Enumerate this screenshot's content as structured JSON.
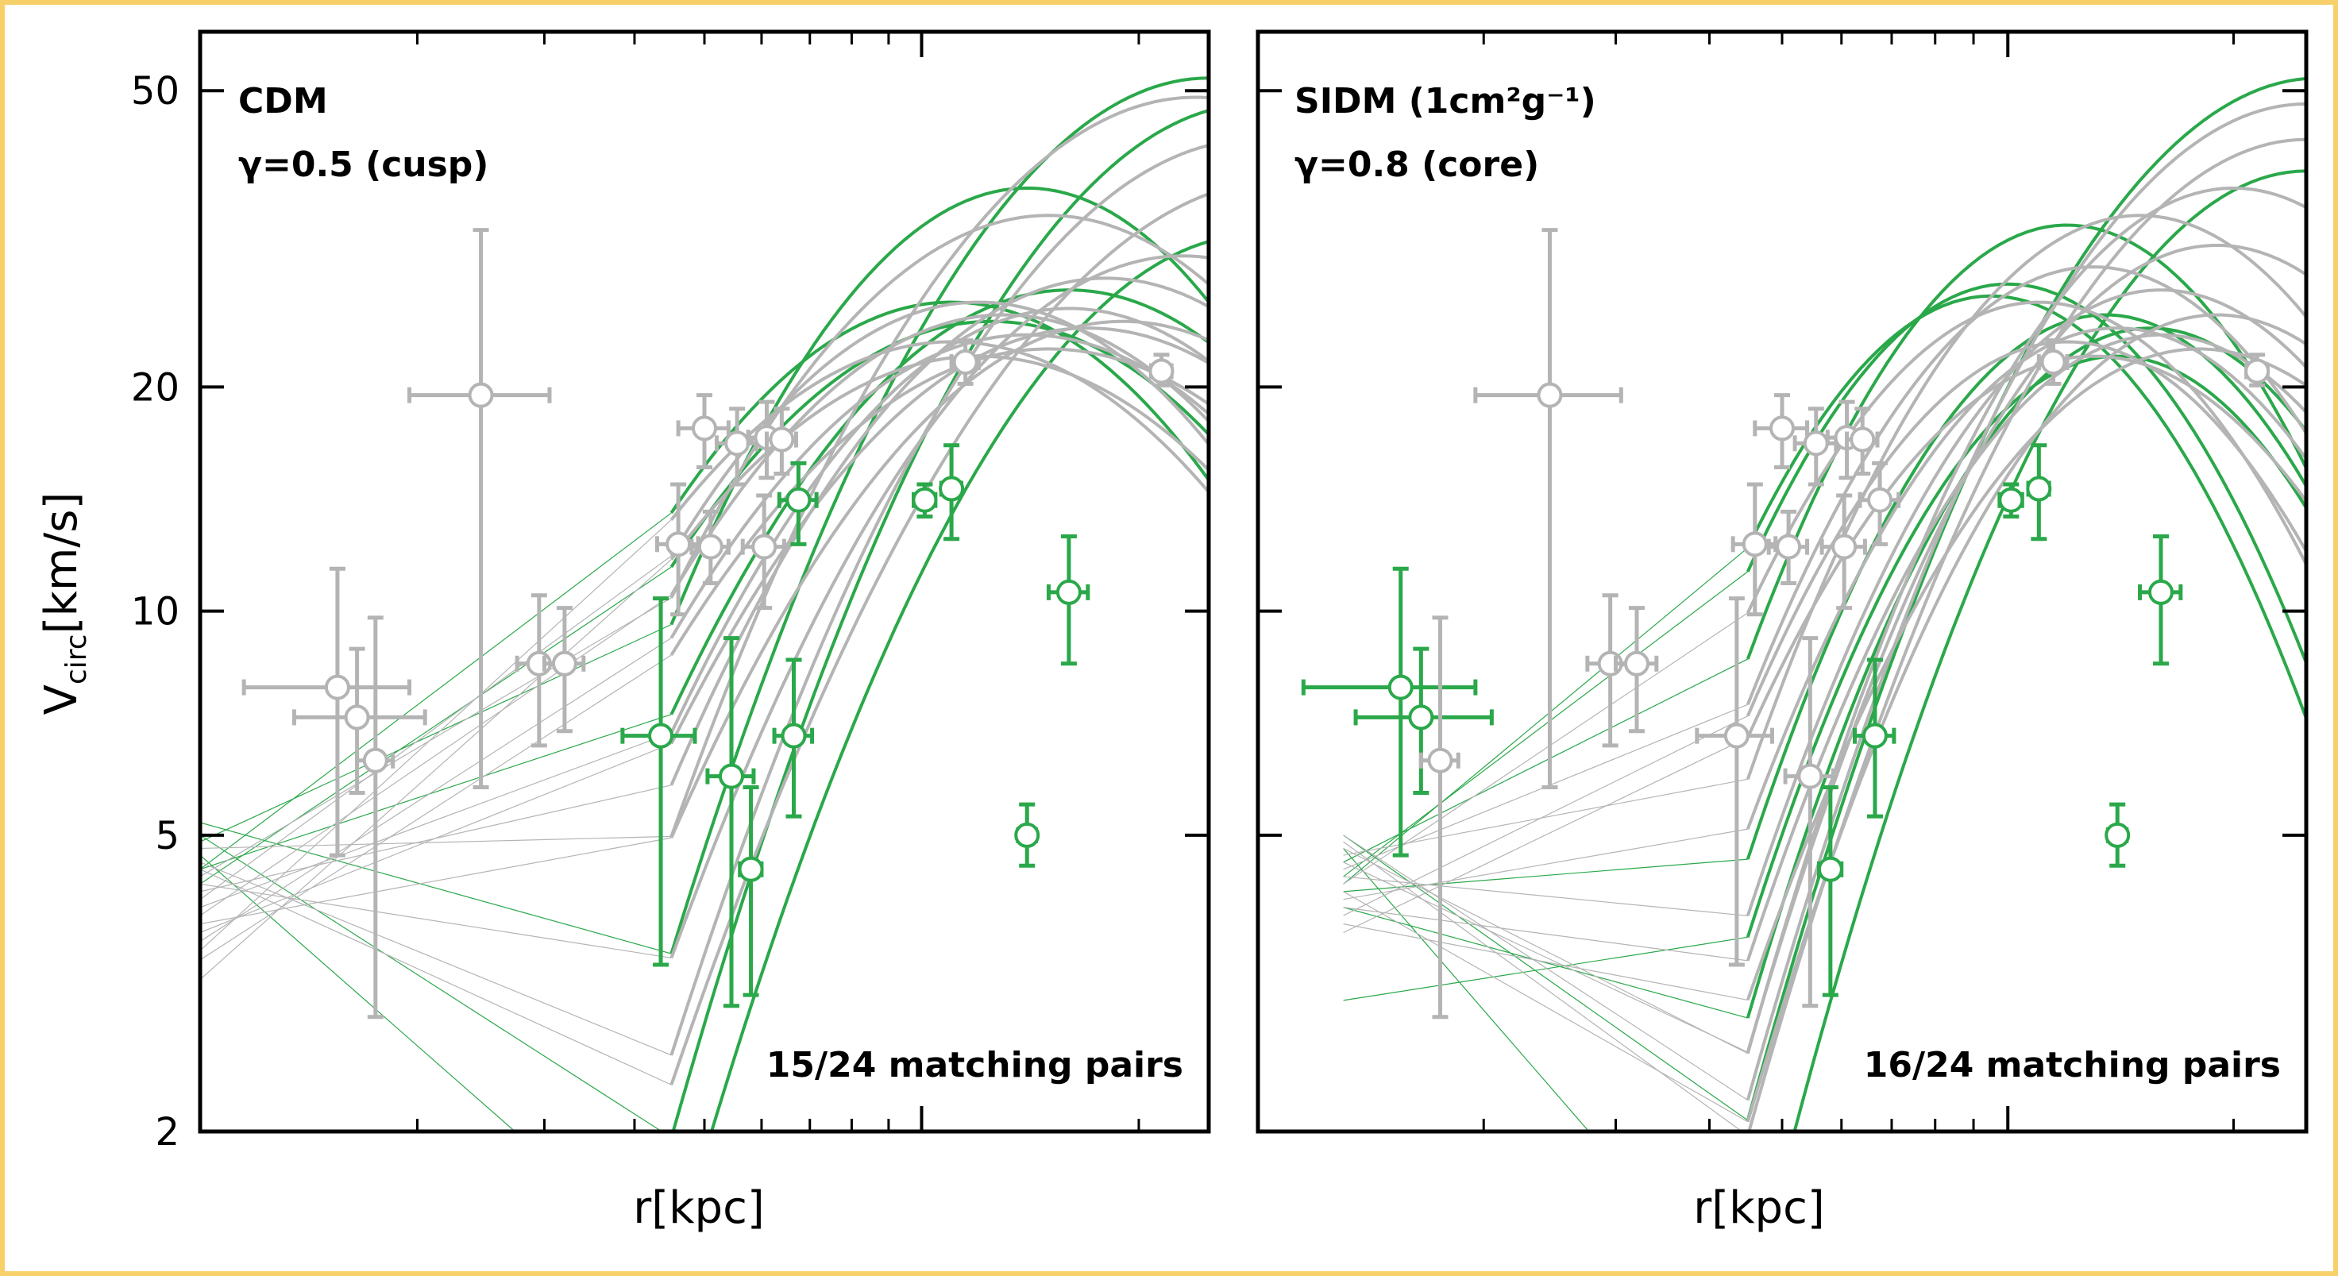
{
  "colors": {
    "frame": "#f8d06a",
    "gray": "#b4b4b4",
    "green": "#2aa84a",
    "axis": "#000000"
  },
  "ylabel_main": "V",
  "ylabel_sub": "circ",
  "ylabel_unit": "[km/s]",
  "chart_data": [
    {
      "type": "line+scatter",
      "title": "CDM",
      "subtitle": "γ=0.5 (cusp)",
      "annotation": "15/24 matching pairs",
      "xlabel": "r[kpc]",
      "xlim": [
        0.1,
        2.5
      ],
      "xscale": "log",
      "ylabel": "V_circ[km/s]",
      "ylim": [
        2,
        60
      ],
      "yscale": "log",
      "yticks": [
        2,
        5,
        10,
        20,
        50
      ],
      "xticks_major": [
        1
      ],
      "xticks_minor": [
        0.2,
        0.3,
        0.4,
        0.5,
        0.6,
        0.7,
        0.8,
        0.9,
        2
      ],
      "curve_start": 0.1,
      "curve_join": 0.45,
      "curves": [
        {
          "color": "green",
          "lowA": 5.2,
          "A": 52,
          "rmax": 2.5,
          "s": 0.32
        },
        {
          "color": "green",
          "lowA": 5.0,
          "A": 48,
          "rmax": 2.9,
          "s": 0.32
        },
        {
          "color": "green",
          "lowA": 4.9,
          "A": 37,
          "rmax": 1.4,
          "s": 0.3
        },
        {
          "color": "green",
          "lowA": 4.7,
          "A": 32,
          "rmax": 2.9,
          "s": 0.32
        },
        {
          "color": "green",
          "lowA": 4.5,
          "A": 27,
          "rmax": 1.6,
          "s": 0.34
        },
        {
          "color": "green",
          "lowA": 4.5,
          "A": 26,
          "rmax": 1.1,
          "s": 0.34
        },
        {
          "color": "green",
          "lowA": 4.3,
          "A": 24.5,
          "rmax": 1.25,
          "s": 0.36
        },
        {
          "color": "gray",
          "lowA": 4.8,
          "A": 49,
          "rmax": 2.4,
          "s": 0.34
        },
        {
          "color": "gray",
          "lowA": 4.6,
          "A": 43,
          "rmax": 2.9,
          "s": 0.34
        },
        {
          "color": "gray",
          "lowA": 4.5,
          "A": 38,
          "rmax": 3.2,
          "s": 0.36
        },
        {
          "color": "gray",
          "lowA": 4.4,
          "A": 34,
          "rmax": 1.5,
          "s": 0.34
        },
        {
          "color": "gray",
          "lowA": 4.3,
          "A": 30,
          "rmax": 2.3,
          "s": 0.34
        },
        {
          "color": "gray",
          "lowA": 4.2,
          "A": 28,
          "rmax": 1.8,
          "s": 0.34
        },
        {
          "color": "gray",
          "lowA": 4.1,
          "A": 26,
          "rmax": 1.2,
          "s": 0.34
        },
        {
          "color": "gray",
          "lowA": 4.0,
          "A": 25.5,
          "rmax": 1.6,
          "s": 0.34
        },
        {
          "color": "gray",
          "lowA": 3.9,
          "A": 25,
          "rmax": 1.3,
          "s": 0.35
        },
        {
          "color": "gray",
          "lowA": 3.8,
          "A": 24.5,
          "rmax": 1.9,
          "s": 0.35
        },
        {
          "color": "gray",
          "lowA": 3.7,
          "A": 24,
          "rmax": 1.7,
          "s": 0.36
        },
        {
          "color": "gray",
          "lowA": 3.6,
          "A": 23.5,
          "rmax": 1.4,
          "s": 0.36
        },
        {
          "color": "gray",
          "lowA": 3.5,
          "A": 23,
          "rmax": 1.1,
          "s": 0.37
        },
        {
          "color": "gray",
          "lowA": 3.4,
          "A": 22.5,
          "rmax": 1.5,
          "s": 0.38
        },
        {
          "color": "gray",
          "lowA": 3.2,
          "A": 22,
          "rmax": 1.2,
          "s": 0.38
        }
      ],
      "points": [
        {
          "r": 0.155,
          "v": 7.9,
          "xlo": 0.115,
          "xhi": 0.195,
          "ylo": 4.7,
          "yhi": 11.4,
          "color": "gray"
        },
        {
          "r": 0.165,
          "v": 7.2,
          "xlo": 0.135,
          "xhi": 0.205,
          "ylo": 5.7,
          "yhi": 8.9,
          "color": "gray"
        },
        {
          "r": 0.175,
          "v": 6.3,
          "xlo": 0.165,
          "xhi": 0.185,
          "ylo": 2.85,
          "yhi": 9.8,
          "color": "gray"
        },
        {
          "r": 0.245,
          "v": 19.5,
          "xlo": 0.195,
          "xhi": 0.305,
          "ylo": 5.8,
          "yhi": 32.5,
          "color": "gray"
        },
        {
          "r": 0.295,
          "v": 8.5,
          "xlo": 0.275,
          "xhi": 0.315,
          "ylo": 6.6,
          "yhi": 10.5,
          "color": "gray"
        },
        {
          "r": 0.32,
          "v": 8.5,
          "xlo": 0.3,
          "xhi": 0.34,
          "ylo": 6.9,
          "yhi": 10.1,
          "color": "gray"
        },
        {
          "r": 0.435,
          "v": 6.8,
          "xlo": 0.385,
          "xhi": 0.485,
          "ylo": 3.35,
          "yhi": 10.4,
          "color": "green"
        },
        {
          "r": 0.46,
          "v": 12.3,
          "xlo": 0.43,
          "xhi": 0.49,
          "ylo": 9.9,
          "yhi": 14.8,
          "color": "gray"
        },
        {
          "r": 0.5,
          "v": 17.6,
          "xlo": 0.46,
          "xhi": 0.54,
          "ylo": 15.6,
          "yhi": 19.5,
          "color": "gray"
        },
        {
          "r": 0.51,
          "v": 12.2,
          "xlo": 0.48,
          "xhi": 0.54,
          "ylo": 10.9,
          "yhi": 13.6,
          "color": "gray"
        },
        {
          "r": 0.545,
          "v": 6.0,
          "xlo": 0.505,
          "xhi": 0.585,
          "ylo": 2.95,
          "yhi": 9.2,
          "color": "green"
        },
        {
          "r": 0.555,
          "v": 16.8,
          "xlo": 0.52,
          "xhi": 0.59,
          "ylo": 14.8,
          "yhi": 18.7,
          "color": "gray"
        },
        {
          "r": 0.58,
          "v": 4.5,
          "xlo": 0.56,
          "xhi": 0.6,
          "ylo": 3.05,
          "yhi": 5.8,
          "color": "green"
        },
        {
          "r": 0.605,
          "v": 12.2,
          "xlo": 0.565,
          "xhi": 0.645,
          "ylo": 10.1,
          "yhi": 14.3,
          "color": "gray"
        },
        {
          "r": 0.61,
          "v": 17.1,
          "xlo": 0.575,
          "xhi": 0.645,
          "ylo": 15.1,
          "yhi": 19.1,
          "color": "gray"
        },
        {
          "r": 0.64,
          "v": 17.0,
          "xlo": 0.61,
          "xhi": 0.67,
          "ylo": 15.3,
          "yhi": 18.7,
          "color": "gray"
        },
        {
          "r": 0.665,
          "v": 6.8,
          "xlo": 0.625,
          "xhi": 0.705,
          "ylo": 5.3,
          "yhi": 8.6,
          "color": "green"
        },
        {
          "r": 0.675,
          "v": 14.1,
          "xlo": 0.635,
          "xhi": 0.715,
          "ylo": 12.3,
          "yhi": 15.8,
          "color": "green"
        },
        {
          "r": 1.01,
          "v": 14.1,
          "xlo": 0.975,
          "xhi": 1.045,
          "ylo": 13.4,
          "yhi": 14.8,
          "color": "green"
        },
        {
          "r": 1.1,
          "v": 14.6,
          "xlo": 1.065,
          "xhi": 1.135,
          "ylo": 12.5,
          "yhi": 16.7,
          "color": "green"
        },
        {
          "r": 1.15,
          "v": 21.6,
          "xlo": 1.1,
          "xhi": 1.2,
          "ylo": 20.2,
          "yhi": 23.1,
          "color": "gray"
        },
        {
          "r": 1.4,
          "v": 5.0,
          "xlo": 1.36,
          "xhi": 1.44,
          "ylo": 4.55,
          "yhi": 5.5,
          "color": "green"
        },
        {
          "r": 1.6,
          "v": 10.6,
          "xlo": 1.5,
          "xhi": 1.7,
          "ylo": 8.5,
          "yhi": 12.6,
          "color": "green"
        },
        {
          "r": 2.15,
          "v": 21.0,
          "xlo": 2.08,
          "xhi": 2.22,
          "ylo": 20.1,
          "yhi": 22.1,
          "color": "gray"
        }
      ]
    },
    {
      "type": "line+scatter",
      "title": "SIDM (1cm²g⁻¹)",
      "subtitle": "γ=0.8 (core)",
      "annotation": "16/24 matching pairs",
      "xlabel": "r[kpc]",
      "xlim": [
        0.1,
        2.5
      ],
      "xscale": "log",
      "ylabel": "V_circ[km/s]",
      "ylim": [
        2,
        60
      ],
      "yscale": "log",
      "yticks": [
        2,
        5,
        10,
        20,
        50
      ],
      "xticks_major": [
        1
      ],
      "xticks_minor": [
        0.2,
        0.3,
        0.4,
        0.5,
        0.6,
        0.7,
        0.8,
        0.9,
        2
      ],
      "curve_start": 0.13,
      "curve_join": 0.45,
      "curves": [
        {
          "color": "green",
          "lowA": 5.0,
          "A": 52,
          "rmax": 2.6,
          "s": 0.3,
          "x0": 0.45
        },
        {
          "color": "green",
          "lowA": 4.8,
          "A": 39,
          "rmax": 2.5,
          "s": 0.28,
          "x0": 0.45
        },
        {
          "color": "green",
          "lowA": 4.6,
          "A": 33,
          "rmax": 1.2,
          "s": 0.26,
          "x0": 0.45
        },
        {
          "color": "green",
          "lowA": 4.4,
          "A": 27.5,
          "rmax": 1.0,
          "s": 0.26,
          "x0": 0.45
        },
        {
          "color": "green",
          "lowA": 4.3,
          "A": 26.5,
          "rmax": 0.95,
          "s": 0.26,
          "x0": 0.45
        },
        {
          "color": "green",
          "lowA": 4.2,
          "A": 25,
          "rmax": 1.35,
          "s": 0.26,
          "x0": 0.45
        },
        {
          "color": "green",
          "lowA": 4.0,
          "A": 24,
          "rmax": 1.55,
          "s": 0.26,
          "x0": 0.45
        },
        {
          "color": "green",
          "lowA": 3.0,
          "A": 22,
          "rmax": 1.4,
          "s": 0.26,
          "x0": 0.45
        },
        {
          "color": "gray",
          "lowA": 5.0,
          "A": 48,
          "rmax": 2.5,
          "s": 0.3,
          "x0": 0.45
        },
        {
          "color": "gray",
          "lowA": 4.9,
          "A": 43,
          "rmax": 2.5,
          "s": 0.3,
          "x0": 0.45
        },
        {
          "color": "gray",
          "lowA": 4.8,
          "A": 37,
          "rmax": 2.0,
          "s": 0.28,
          "x0": 0.45
        },
        {
          "color": "gray",
          "lowA": 4.7,
          "A": 34,
          "rmax": 1.5,
          "s": 0.28,
          "x0": 0.45
        },
        {
          "color": "gray",
          "lowA": 4.6,
          "A": 31,
          "rmax": 1.9,
          "s": 0.28,
          "x0": 0.45
        },
        {
          "color": "gray",
          "lowA": 4.5,
          "A": 29,
          "rmax": 1.3,
          "s": 0.28,
          "x0": 0.45
        },
        {
          "color": "gray",
          "lowA": 4.4,
          "A": 27,
          "rmax": 1.6,
          "s": 0.28,
          "x0": 0.45
        },
        {
          "color": "gray",
          "lowA": 4.3,
          "A": 26,
          "rmax": 1.1,
          "s": 0.28,
          "x0": 0.45
        },
        {
          "color": "gray",
          "lowA": 4.2,
          "A": 25,
          "rmax": 1.9,
          "s": 0.28,
          "x0": 0.45
        },
        {
          "color": "gray",
          "lowA": 4.1,
          "A": 24,
          "rmax": 1.4,
          "s": 0.28,
          "x0": 0.45
        },
        {
          "color": "gray",
          "lowA": 4.0,
          "A": 23.5,
          "rmax": 1.6,
          "s": 0.28,
          "x0": 0.45
        },
        {
          "color": "gray",
          "lowA": 3.9,
          "A": 23,
          "rmax": 1.2,
          "s": 0.28,
          "x0": 0.45
        },
        {
          "color": "gray",
          "lowA": 3.8,
          "A": 22.5,
          "rmax": 1.8,
          "s": 0.3,
          "x0": 0.45
        },
        {
          "color": "gray",
          "lowA": 3.7,
          "A": 22,
          "rmax": 1.3,
          "s": 0.3,
          "x0": 0.45
        }
      ],
      "points": [
        {
          "r": 0.155,
          "v": 7.9,
          "xlo": 0.115,
          "xhi": 0.195,
          "ylo": 4.7,
          "yhi": 11.4,
          "color": "green"
        },
        {
          "r": 0.165,
          "v": 7.2,
          "xlo": 0.135,
          "xhi": 0.205,
          "ylo": 5.7,
          "yhi": 8.9,
          "color": "green"
        },
        {
          "r": 0.175,
          "v": 6.3,
          "xlo": 0.165,
          "xhi": 0.185,
          "ylo": 2.85,
          "yhi": 9.8,
          "color": "gray"
        },
        {
          "r": 0.245,
          "v": 19.5,
          "xlo": 0.195,
          "xhi": 0.305,
          "ylo": 5.8,
          "yhi": 32.5,
          "color": "gray"
        },
        {
          "r": 0.295,
          "v": 8.5,
          "xlo": 0.275,
          "xhi": 0.315,
          "ylo": 6.6,
          "yhi": 10.5,
          "color": "gray"
        },
        {
          "r": 0.32,
          "v": 8.5,
          "xlo": 0.3,
          "xhi": 0.34,
          "ylo": 6.9,
          "yhi": 10.1,
          "color": "gray"
        },
        {
          "r": 0.435,
          "v": 6.8,
          "xlo": 0.385,
          "xhi": 0.485,
          "ylo": 3.35,
          "yhi": 10.4,
          "color": "gray"
        },
        {
          "r": 0.46,
          "v": 12.3,
          "xlo": 0.43,
          "xhi": 0.49,
          "ylo": 9.9,
          "yhi": 14.8,
          "color": "gray"
        },
        {
          "r": 0.5,
          "v": 17.6,
          "xlo": 0.46,
          "xhi": 0.54,
          "ylo": 15.6,
          "yhi": 19.5,
          "color": "gray"
        },
        {
          "r": 0.51,
          "v": 12.2,
          "xlo": 0.48,
          "xhi": 0.54,
          "ylo": 10.9,
          "yhi": 13.6,
          "color": "gray"
        },
        {
          "r": 0.545,
          "v": 6.0,
          "xlo": 0.505,
          "xhi": 0.585,
          "ylo": 2.95,
          "yhi": 9.2,
          "color": "gray"
        },
        {
          "r": 0.555,
          "v": 16.8,
          "xlo": 0.52,
          "xhi": 0.59,
          "ylo": 14.8,
          "yhi": 18.7,
          "color": "gray"
        },
        {
          "r": 0.58,
          "v": 4.5,
          "xlo": 0.56,
          "xhi": 0.6,
          "ylo": 3.05,
          "yhi": 5.8,
          "color": "green"
        },
        {
          "r": 0.605,
          "v": 12.2,
          "xlo": 0.565,
          "xhi": 0.645,
          "ylo": 10.1,
          "yhi": 14.3,
          "color": "gray"
        },
        {
          "r": 0.61,
          "v": 17.1,
          "xlo": 0.575,
          "xhi": 0.645,
          "ylo": 15.1,
          "yhi": 19.1,
          "color": "gray"
        },
        {
          "r": 0.64,
          "v": 17.0,
          "xlo": 0.61,
          "xhi": 0.67,
          "ylo": 15.3,
          "yhi": 18.7,
          "color": "gray"
        },
        {
          "r": 0.665,
          "v": 6.8,
          "xlo": 0.625,
          "xhi": 0.705,
          "ylo": 5.3,
          "yhi": 8.6,
          "color": "green"
        },
        {
          "r": 0.675,
          "v": 14.1,
          "xlo": 0.635,
          "xhi": 0.715,
          "ylo": 12.3,
          "yhi": 15.8,
          "color": "gray"
        },
        {
          "r": 1.01,
          "v": 14.1,
          "xlo": 0.975,
          "xhi": 1.045,
          "ylo": 13.4,
          "yhi": 14.8,
          "color": "green"
        },
        {
          "r": 1.1,
          "v": 14.6,
          "xlo": 1.065,
          "xhi": 1.135,
          "ylo": 12.5,
          "yhi": 16.7,
          "color": "green"
        },
        {
          "r": 1.15,
          "v": 21.6,
          "xlo": 1.1,
          "xhi": 1.2,
          "ylo": 20.2,
          "yhi": 23.1,
          "color": "gray"
        },
        {
          "r": 1.4,
          "v": 5.0,
          "xlo": 1.36,
          "xhi": 1.44,
          "ylo": 4.55,
          "yhi": 5.5,
          "color": "green"
        },
        {
          "r": 1.6,
          "v": 10.6,
          "xlo": 1.5,
          "xhi": 1.7,
          "ylo": 8.5,
          "yhi": 12.6,
          "color": "green"
        },
        {
          "r": 2.15,
          "v": 21.0,
          "xlo": 2.08,
          "xhi": 2.22,
          "ylo": 20.1,
          "yhi": 22.1,
          "color": "gray"
        }
      ]
    }
  ]
}
